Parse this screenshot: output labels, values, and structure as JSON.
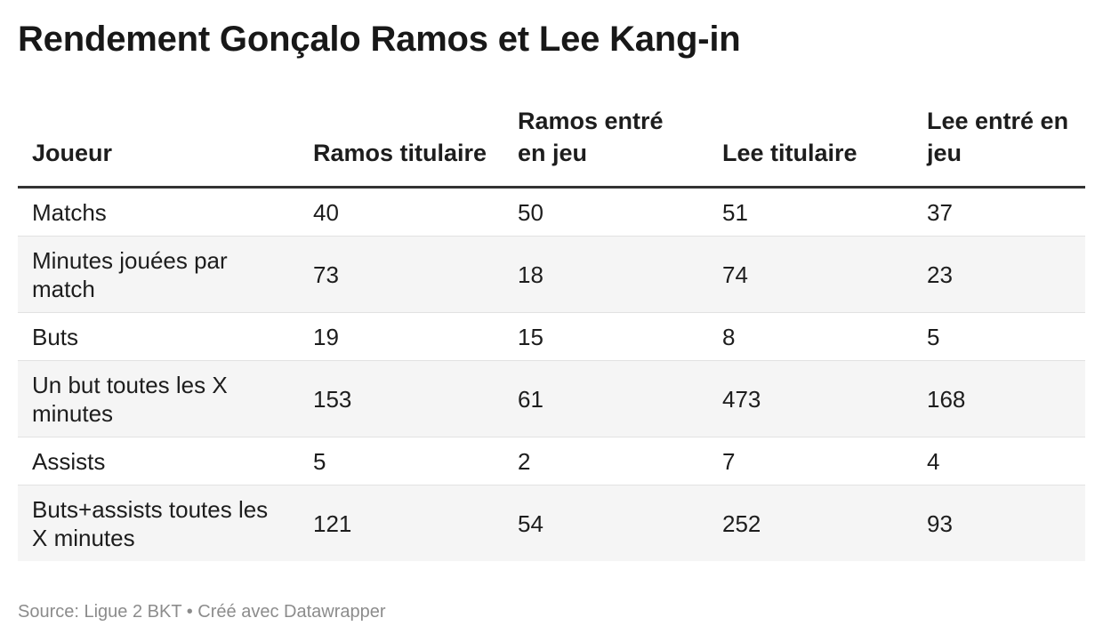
{
  "title": "Rendement Gonçalo Ramos et Lee Kang-in",
  "chart_data": {
    "type": "table",
    "title": "Rendement Gonçalo Ramos et Lee Kang-in",
    "columns": [
      "Joueur",
      "Ramos titulaire",
      "Ramos entré en jeu",
      "Lee titulaire",
      "Lee entré en jeu"
    ],
    "rows": [
      {
        "label": "Matchs",
        "values": [
          "40",
          "50",
          "51",
          "37"
        ]
      },
      {
        "label": "Minutes jouées par match",
        "values": [
          "73",
          "18",
          "74",
          "23"
        ]
      },
      {
        "label": "Buts",
        "values": [
          "19",
          "15",
          "8",
          "5"
        ]
      },
      {
        "label": "Un but toutes les X minutes",
        "values": [
          "153",
          "61",
          "473",
          "168"
        ]
      },
      {
        "label": "Assists",
        "values": [
          "5",
          "2",
          "7",
          "4"
        ]
      },
      {
        "label": "Buts+assists toutes les X minutes",
        "values": [
          "121",
          "54",
          "252",
          "93"
        ]
      }
    ]
  },
  "footer": {
    "source": "Source: Ligue 2 BKT • Créé avec Datawrapper"
  }
}
